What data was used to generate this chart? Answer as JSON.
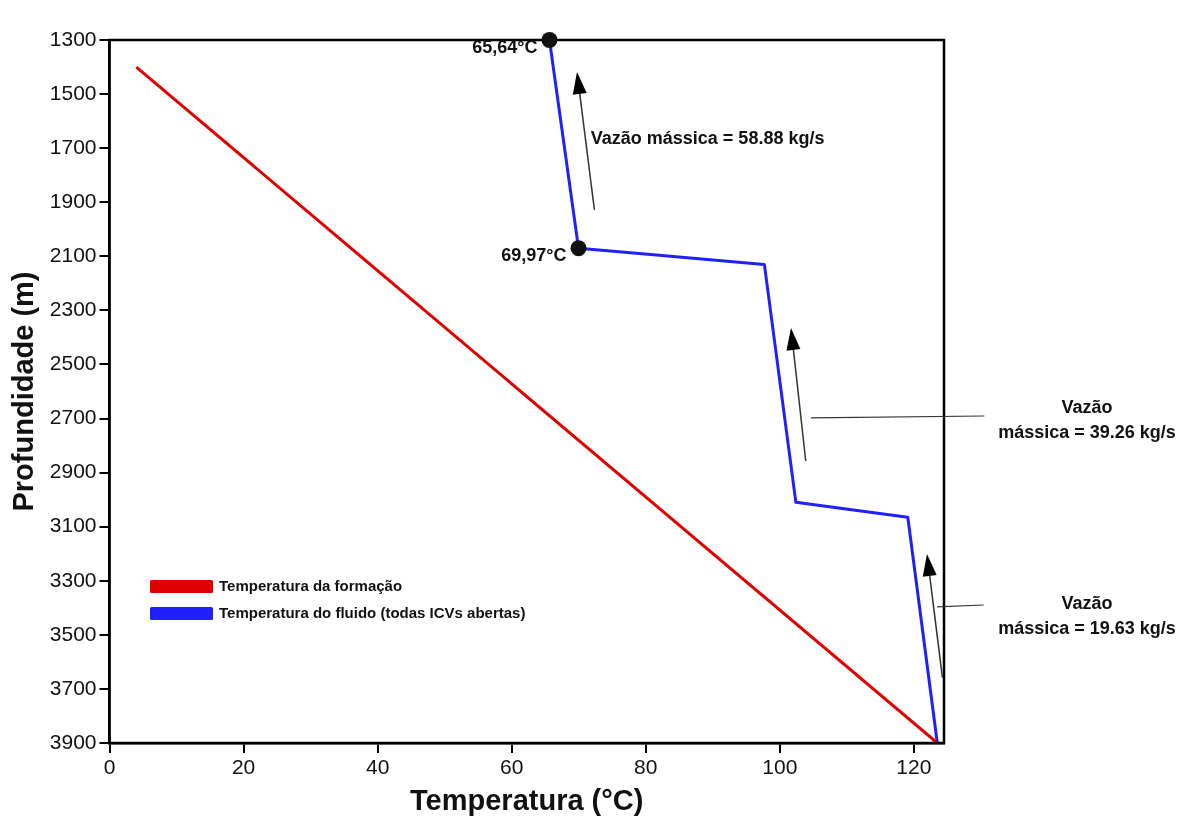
{
  "chart_data": {
    "type": "line",
    "xlabel": "Temperatura (°C)",
    "ylabel": "Profundidade (m)",
    "xlim": [
      0,
      124.5
    ],
    "xticks": [
      0,
      20,
      40,
      60,
      80,
      100,
      120
    ],
    "ylim": [
      3900,
      1300
    ],
    "yticks": [
      1300,
      1500,
      1700,
      1900,
      2100,
      2300,
      2500,
      2700,
      2900,
      3100,
      3300,
      3500,
      3700,
      3900
    ],
    "grid": false,
    "legend": "bottom left",
    "marker": "none",
    "line_style": "solid",
    "series": [
      {
        "name": "Temperatura da formação",
        "color": "#e00000",
        "x": [
          4,
          123.5
        ],
        "values": [
          1400,
          3900
        ]
      },
      {
        "name": "Temperatura do fluido (todas ICVs abertas)",
        "color": "#1f1fff",
        "x": [
          65.64,
          69.97,
          97.7,
          102.4,
          119.1,
          123.5
        ],
        "values": [
          1300,
          2070,
          2130,
          3010,
          3065,
          3900
        ]
      }
    ],
    "annotations": [
      {
        "text": "65,64°C",
        "x": 65.64,
        "y": 1300
      },
      {
        "text": "69,97°C",
        "x": 69.97,
        "y": 2070
      },
      "Vazão mássica = 58.88 kg/s",
      "Vazão mássica = 39.26 kg/s",
      "Vazão mássica = 19.63 kg/s"
    ]
  }
}
